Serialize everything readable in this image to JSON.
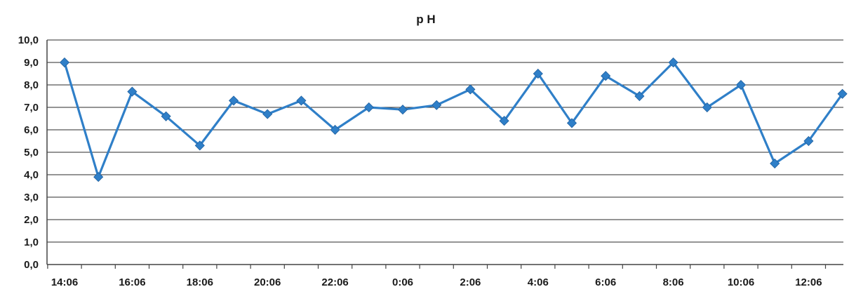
{
  "chart_data": {
    "type": "line",
    "title": "p H",
    "xlabel": "",
    "ylabel": "",
    "ylim": [
      0,
      10
    ],
    "y_ticks": [
      "0,0",
      "1,0",
      "2,0",
      "3,0",
      "4,0",
      "5,0",
      "6,0",
      "7,0",
      "8,0",
      "9,0",
      "10,0"
    ],
    "x_tick_labels": [
      "14:06",
      "16:06",
      "18:06",
      "20:06",
      "22:06",
      "0:06",
      "2:06",
      "4:06",
      "6:06",
      "8:06",
      "10:06",
      "12:06"
    ],
    "x": [
      "14:06",
      "15:06",
      "16:06",
      "17:06",
      "18:06",
      "19:06",
      "20:06",
      "21:06",
      "22:06",
      "23:06",
      "0:06",
      "1:06",
      "2:06",
      "3:06",
      "4:06",
      "5:06",
      "6:06",
      "7:06",
      "8:06",
      "9:06",
      "10:06",
      "11:06",
      "12:06",
      "13:06"
    ],
    "series": [
      {
        "values": [
          9.0,
          3.9,
          7.7,
          6.6,
          5.3,
          7.3,
          6.7,
          7.3,
          6.0,
          7.0,
          6.9,
          7.1,
          7.8,
          6.4,
          8.5,
          6.3,
          8.4,
          7.5,
          9.0,
          7.0,
          8.0,
          4.5,
          5.5,
          7.6
        ],
        "color": "#2f7fc8"
      }
    ],
    "grid": true,
    "legend": "none"
  }
}
